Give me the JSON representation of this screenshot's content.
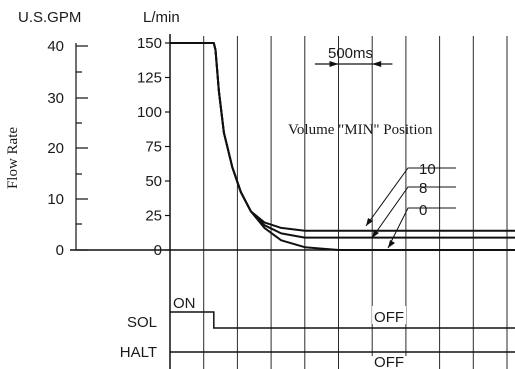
{
  "chart_data": {
    "type": "line",
    "ylabel": "Flow Rate",
    "y_units": {
      "left": "U.S.GPM",
      "right": "L/min"
    },
    "y_ticks_gpm": [
      "40",
      "30",
      "20",
      "10",
      "0"
    ],
    "y_ticks_lpm": [
      "150",
      "125",
      "100",
      "75",
      "50",
      "25",
      "0"
    ],
    "ylim_lpm": [
      0,
      150
    ],
    "grid": true,
    "annotations": {
      "time_scale": "500ms",
      "position_note": "Volume \"MIN\" Position",
      "curve_labels": [
        "10",
        "8",
        "0"
      ]
    },
    "series": [
      {
        "name": "10",
        "x_grid": [
          0,
          1.3,
          1.35,
          1.45,
          1.6,
          1.85,
          2.1,
          2.4,
          2.8,
          3.3,
          4,
          5,
          7,
          12.2,
          12.3,
          12.5
        ],
        "values": [
          150,
          150,
          145,
          115,
          85,
          60,
          42,
          28,
          20,
          16,
          14,
          14,
          14,
          14,
          5,
          0
        ]
      },
      {
        "name": "8",
        "x_grid": [
          0,
          1.3,
          1.35,
          1.45,
          1.6,
          1.85,
          2.1,
          2.4,
          2.8,
          3.3,
          4,
          5,
          7,
          12.2,
          12.5
        ],
        "values": [
          150,
          150,
          145,
          115,
          85,
          60,
          42,
          28,
          18,
          12,
          9,
          9,
          9,
          9,
          0
        ]
      },
      {
        "name": "0",
        "x_grid": [
          0,
          1.3,
          1.35,
          1.45,
          1.6,
          1.85,
          2.1,
          2.4,
          2.8,
          3.3,
          4,
          5,
          7,
          12.5
        ],
        "values": [
          150,
          150,
          145,
          115,
          85,
          60,
          42,
          28,
          16,
          7,
          2,
          0,
          0,
          0
        ]
      }
    ],
    "signals": [
      {
        "name": "SOL",
        "segments": [
          {
            "state": "ON",
            "from": 0,
            "to": 1.3
          },
          {
            "state": "OFF",
            "from": 1.3,
            "to": 14
          }
        ]
      },
      {
        "name": "HALT",
        "segments": [
          {
            "state": "OFF",
            "from": 0,
            "to": 12.2
          },
          {
            "state": "ON",
            "from": 12.2,
            "to": 14
          }
        ]
      }
    ]
  }
}
